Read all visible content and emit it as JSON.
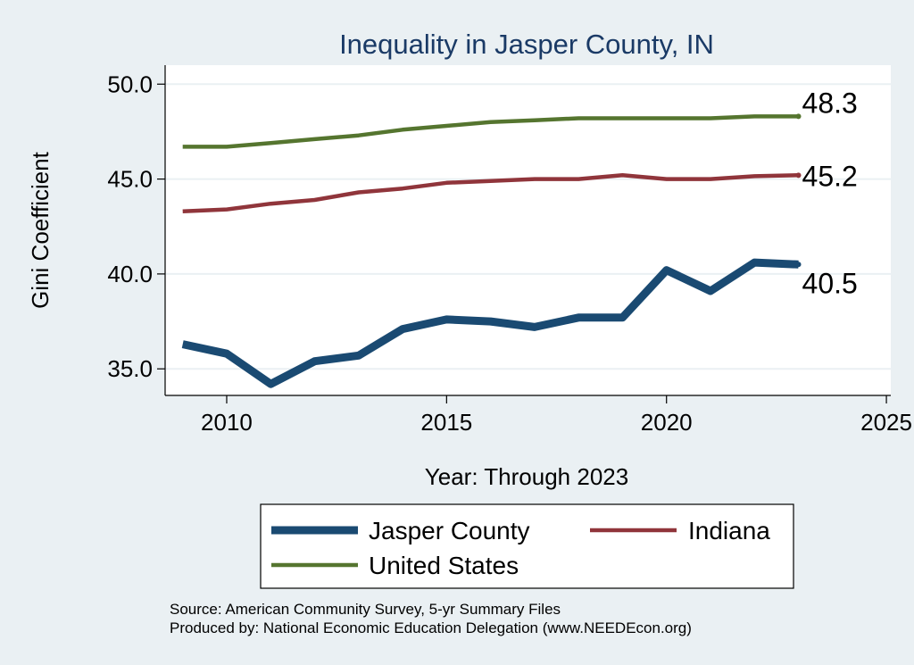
{
  "chart_data": {
    "type": "line",
    "title": "Inequality in Jasper County, IN",
    "xlabel": "Year: Through 2023",
    "ylabel": "Gini Coefficient",
    "xlim": [
      2008.6,
      2025.1
    ],
    "ylim": [
      33.6,
      51.0
    ],
    "xticks": [
      2010,
      2015,
      2020,
      2025
    ],
    "yticks": [
      35.0,
      40.0,
      45.0,
      50.0
    ],
    "ytick_labels": [
      "35.0",
      "40.0",
      "45.0",
      "50.0"
    ],
    "grid": true,
    "x": [
      2009,
      2010,
      2011,
      2012,
      2013,
      2014,
      2015,
      2016,
      2017,
      2018,
      2019,
      2020,
      2021,
      2022,
      2023
    ],
    "series": [
      {
        "name": "Jasper County",
        "color": "#1a4a72",
        "end_label": "40.5",
        "values": [
          36.3,
          35.8,
          34.2,
          35.4,
          35.7,
          37.1,
          37.6,
          37.5,
          37.2,
          37.7,
          37.7,
          40.2,
          39.1,
          40.6,
          40.5
        ]
      },
      {
        "name": "Indiana",
        "color": "#90353b",
        "end_label": "45.2",
        "values": [
          43.3,
          43.4,
          43.7,
          43.9,
          44.3,
          44.5,
          44.8,
          44.9,
          45.0,
          45.0,
          45.2,
          45.0,
          45.0,
          45.15,
          45.2
        ]
      },
      {
        "name": "United States",
        "color": "#55752f",
        "end_label": "48.3",
        "values": [
          46.7,
          46.7,
          46.9,
          47.1,
          47.3,
          47.6,
          47.8,
          48.0,
          48.1,
          48.2,
          48.2,
          48.2,
          48.2,
          48.3,
          48.3
        ]
      }
    ],
    "legend": {
      "position": "bottom",
      "entries": [
        "Jasper County",
        "Indiana",
        "United States"
      ]
    }
  },
  "footer": {
    "source": "Source: American Community Survey, 5-yr Summary Files",
    "produced_by": "Produced by: National Economic Education Delegation (www.NEEDEcon.org)"
  }
}
